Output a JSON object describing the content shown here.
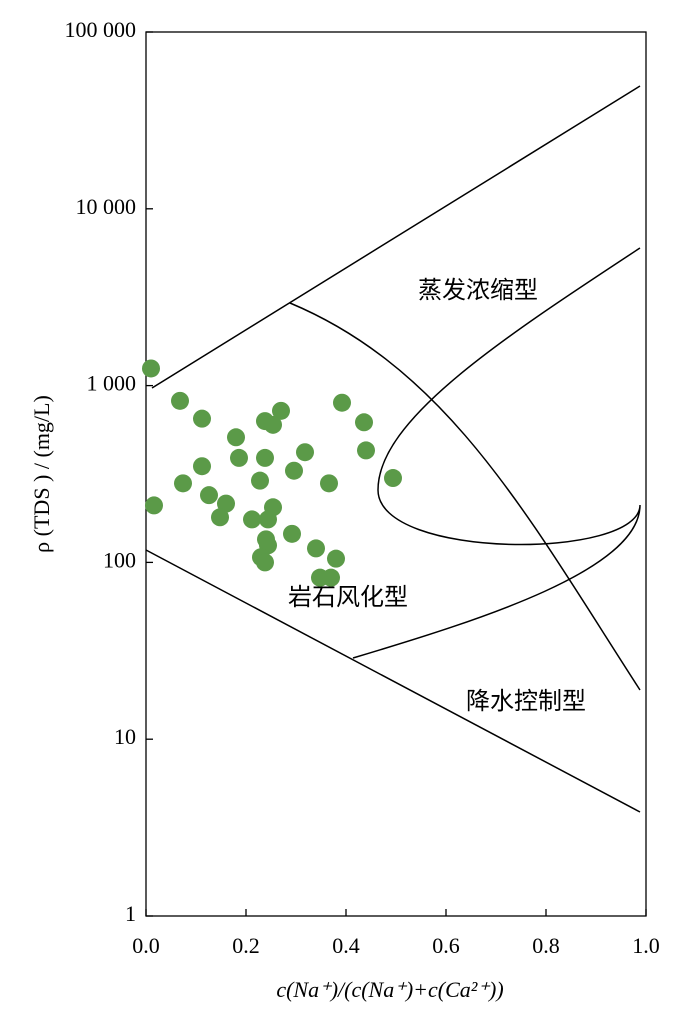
{
  "chart_data": {
    "type": "scatter",
    "x_label": "c(Na⁺)/(c(Na⁺)+c(Ca²⁺))",
    "y_label": "ρ (TDS ) / (mg/L)",
    "y_log": true,
    "color": "#5b9a48",
    "annotations": [
      "蒸发浓缩型",
      "岩石风化型",
      "降水控制型"
    ],
    "xlim": [
      0,
      1
    ],
    "xticks": [
      {
        "value": 0,
        "label": "0.0"
      },
      0.2,
      0.4,
      0.6,
      0.8,
      {
        "value": 1,
        "label": "1.0"
      }
    ],
    "ylim": [
      1,
      100000
    ],
    "yticks": [
      1,
      10,
      100,
      {
        "value": 1000,
        "label": "1 000"
      },
      {
        "value": 10000,
        "label": "10 000"
      },
      {
        "value": 100000,
        "label": "100 000"
      }
    ],
    "x": [
      0.01,
      0.068,
      0.112,
      0.18,
      0.238,
      0.27,
      0.254,
      0.392,
      0.436,
      0.44,
      0.318,
      0.186,
      0.238,
      0.112,
      0.296,
      0.494,
      0.228,
      0.366,
      0.074,
      0.016,
      0.126,
      0.16,
      0.254,
      0.148,
      0.212,
      0.244,
      0.292,
      0.24,
      0.244,
      0.34,
      0.23,
      0.38,
      0.238,
      0.348,
      0.37
    ],
    "y": [
      1250,
      820,
      650,
      510,
      630,
      720,
      600,
      800,
      620,
      430,
      420,
      390,
      390,
      350,
      330,
      300,
      290,
      280,
      280,
      210,
      240,
      215,
      205,
      180,
      175,
      175,
      145,
      135,
      125,
      120,
      107,
      105,
      100,
      82,
      82
    ]
  }
}
